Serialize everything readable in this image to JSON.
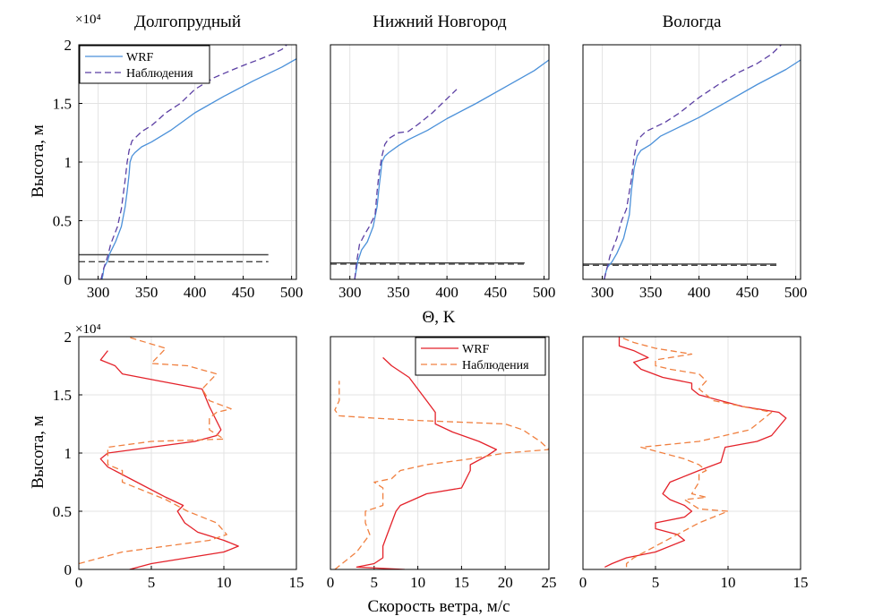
{
  "figure": {
    "top_ylabel": "Высота, м",
    "bottom_ylabel": "Высота, м",
    "top_xlabel": "Θ, K",
    "bottom_xlabel": "Скорость ветра, м/с",
    "y_multiplier": "×10⁴"
  },
  "colors": {
    "wrf_theta": "#4a90d9",
    "obs_theta": "#5b3fa3",
    "wrf_wind": "#e4222a",
    "obs_wind": "#f08040",
    "grid": "#e3e3e3",
    "hline_wrf": "#444444",
    "hline_obs": "#444444"
  },
  "chart_data": [
    {
      "type": "line",
      "panel": "top-left",
      "title": "Долгопрудный",
      "xlim": [
        280,
        505
      ],
      "ylim": [
        0,
        2
      ],
      "xticks": [
        "300",
        "350",
        "400",
        "450",
        "500"
      ],
      "yticks": [
        "0",
        "0.5",
        "1",
        "1.5",
        "2"
      ],
      "grid": true,
      "legend": {
        "placement": "top-left",
        "entries": [
          "WRF",
          "Наблюдения"
        ]
      },
      "series": [
        {
          "name": "WRF",
          "style": "solid",
          "x": [
            304,
            305,
            306,
            310,
            312,
            318,
            324,
            328,
            330,
            332,
            333,
            335,
            338,
            345,
            355,
            375,
            400,
            430,
            460,
            490,
            505
          ],
          "y": [
            0,
            0.04,
            0.1,
            0.16,
            0.22,
            0.32,
            0.45,
            0.62,
            0.75,
            0.9,
            1.0,
            1.05,
            1.08,
            1.13,
            1.17,
            1.27,
            1.42,
            1.56,
            1.69,
            1.81,
            1.88
          ]
        },
        {
          "name": "Наблюдения",
          "style": "dashed",
          "x": [
            303,
            306,
            310,
            313,
            320,
            324,
            328,
            330,
            332,
            335,
            340,
            345,
            355,
            362,
            370,
            385,
            400,
            420,
            440,
            455,
            465,
            480,
            490,
            495
          ],
          "y": [
            0,
            0.1,
            0.2,
            0.3,
            0.45,
            0.6,
            0.85,
            1.0,
            1.1,
            1.18,
            1.22,
            1.26,
            1.31,
            1.36,
            1.42,
            1.5,
            1.62,
            1.72,
            1.79,
            1.84,
            1.87,
            1.92,
            1.96,
            2.0
          ]
        }
      ],
      "hlines": [
        {
          "kind": "WRF",
          "style": "solid",
          "y": 0.21,
          "x0": 280,
          "x1": 476
        },
        {
          "kind": "Наблюдения",
          "style": "dashed",
          "y": 0.15,
          "x0": 280,
          "x1": 476
        }
      ]
    },
    {
      "type": "line",
      "panel": "top-middle",
      "title": "Нижний Новгород",
      "xlim": [
        280,
        505
      ],
      "ylim": [
        0,
        2
      ],
      "xticks": [
        "300",
        "350",
        "400",
        "450",
        "500"
      ],
      "yticks": [],
      "grid": true,
      "series": [
        {
          "name": "WRF",
          "style": "solid",
          "x": [
            305,
            306,
            308,
            312,
            318,
            324,
            328,
            330,
            332,
            333,
            336,
            340,
            350,
            360,
            380,
            400,
            430,
            460,
            490,
            505
          ],
          "y": [
            0,
            0.05,
            0.15,
            0.25,
            0.32,
            0.45,
            0.62,
            0.78,
            0.92,
            1.0,
            1.05,
            1.08,
            1.14,
            1.19,
            1.27,
            1.37,
            1.5,
            1.64,
            1.78,
            1.87
          ]
        },
        {
          "name": "Наблюдения",
          "style": "dashed",
          "x": [
            305,
            307,
            310,
            315,
            320,
            326,
            328,
            330,
            333,
            336,
            340,
            350,
            360,
            370,
            385,
            395,
            405,
            410
          ],
          "y": [
            0,
            0.15,
            0.3,
            0.38,
            0.45,
            0.55,
            0.75,
            0.9,
            1.05,
            1.15,
            1.2,
            1.25,
            1.26,
            1.32,
            1.42,
            1.5,
            1.58,
            1.62
          ]
        }
      ],
      "hlines": [
        {
          "kind": "WRF",
          "style": "solid",
          "y": 0.14,
          "x0": 280,
          "x1": 480
        },
        {
          "kind": "Наблюдения",
          "style": "dashed",
          "y": 0.13,
          "x0": 280,
          "x1": 480
        }
      ]
    },
    {
      "type": "line",
      "panel": "top-right",
      "title": "Вологда",
      "xlim": [
        280,
        505
      ],
      "ylim": [
        0,
        2
      ],
      "xticks": [
        "300",
        "350",
        "400",
        "450",
        "500"
      ],
      "yticks": [],
      "grid": true,
      "series": [
        {
          "name": "WRF",
          "style": "solid",
          "x": [
            302,
            303,
            305,
            310,
            315,
            322,
            328,
            330,
            333,
            336,
            340,
            350,
            360,
            380,
            400,
            430,
            460,
            490,
            505
          ],
          "y": [
            0,
            0.04,
            0.1,
            0.15,
            0.22,
            0.35,
            0.55,
            0.75,
            0.95,
            1.05,
            1.1,
            1.15,
            1.22,
            1.3,
            1.38,
            1.52,
            1.66,
            1.79,
            1.87
          ]
        },
        {
          "name": "Наблюдения",
          "style": "dashed",
          "x": [
            302,
            305,
            308,
            315,
            320,
            325,
            330,
            333,
            336,
            340,
            345,
            355,
            365,
            380,
            400,
            420,
            440,
            460,
            475,
            485
          ],
          "y": [
            0,
            0.1,
            0.2,
            0.35,
            0.5,
            0.6,
            0.85,
            1.05,
            1.18,
            1.22,
            1.26,
            1.3,
            1.34,
            1.42,
            1.55,
            1.66,
            1.76,
            1.84,
            1.92,
            2.0
          ]
        }
      ],
      "hlines": [
        {
          "kind": "WRF",
          "style": "solid",
          "y": 0.13,
          "x0": 280,
          "x1": 480
        },
        {
          "kind": "Наблюдения",
          "style": "dashed",
          "y": 0.12,
          "x0": 280,
          "x1": 480
        }
      ]
    },
    {
      "type": "line",
      "panel": "bottom-left",
      "title": "",
      "xlim": [
        0,
        15
      ],
      "ylim": [
        0,
        2
      ],
      "xticks": [
        "0",
        "5",
        "10",
        "15"
      ],
      "yticks": [
        "0",
        "0.5",
        "1",
        "1.5",
        "2"
      ],
      "grid": true,
      "series": [
        {
          "name": "WRF",
          "style": "solid",
          "x": [
            3.5,
            5,
            7.5,
            10,
            11,
            10,
            8.2,
            7.3,
            6.8,
            7.2,
            6,
            4,
            2,
            1.5,
            2,
            5,
            8,
            9.5,
            9.8,
            9,
            8.5,
            5.5,
            3,
            2.5,
            1.5,
            2
          ],
          "y": [
            0,
            0.05,
            0.1,
            0.15,
            0.2,
            0.25,
            0.32,
            0.4,
            0.5,
            0.55,
            0.62,
            0.75,
            0.88,
            0.95,
            1.0,
            1.05,
            1.1,
            1.15,
            1.2,
            1.4,
            1.55,
            1.62,
            1.68,
            1.75,
            1.8,
            1.88
          ]
        },
        {
          "name": "Наблюдения",
          "style": "dashed",
          "x": [
            0,
            3,
            6,
            9,
            10.2,
            9.5,
            7.5,
            6,
            4,
            3,
            3,
            2,
            2,
            5,
            10,
            9,
            9,
            9.5,
            10.5,
            9,
            8.5,
            9.5,
            7.5,
            5,
            6,
            3.3
          ],
          "y": [
            0.05,
            0.15,
            0.2,
            0.25,
            0.3,
            0.4,
            0.5,
            0.6,
            0.7,
            0.75,
            0.85,
            0.9,
            1.05,
            1.1,
            1.12,
            1.2,
            1.3,
            1.35,
            1.38,
            1.45,
            1.55,
            1.68,
            1.75,
            1.77,
            1.9,
            2.0
          ]
        }
      ]
    },
    {
      "type": "line",
      "panel": "bottom-middle",
      "title": "",
      "xlim": [
        0,
        25
      ],
      "ylim": [
        0,
        2
      ],
      "xticks": [
        "0",
        "5",
        "10",
        "15",
        "20",
        "25"
      ],
      "yticks": [],
      "grid": true,
      "legend": {
        "placement": "top-right",
        "entries": [
          "WRF",
          "Наблюдения"
        ]
      },
      "series": [
        {
          "name": "WRF",
          "style": "solid",
          "x": [
            8.5,
            3,
            5,
            6,
            6,
            6.5,
            7,
            7.5,
            8,
            11,
            15,
            16,
            16,
            18,
            19,
            17,
            14,
            12,
            12,
            11,
            10,
            9,
            7,
            6
          ],
          "y": [
            0,
            0.02,
            0.05,
            0.1,
            0.2,
            0.3,
            0.4,
            0.5,
            0.55,
            0.65,
            0.7,
            0.85,
            0.9,
            0.98,
            1.03,
            1.1,
            1.18,
            1.25,
            1.35,
            1.45,
            1.55,
            1.65,
            1.75,
            1.82
          ]
        },
        {
          "name": "Наблюдения",
          "style": "dashed",
          "x": [
            0.5,
            3,
            4.5,
            4,
            4,
            6,
            6,
            5,
            7,
            8,
            11,
            16,
            20,
            25,
            24,
            22,
            20,
            10,
            5,
            1,
            0.5,
            1,
            1,
            1
          ],
          "y": [
            0,
            0.15,
            0.3,
            0.4,
            0.5,
            0.55,
            0.7,
            0.75,
            0.78,
            0.85,
            0.9,
            0.95,
            1.0,
            1.03,
            1.1,
            1.2,
            1.25,
            1.28,
            1.3,
            1.32,
            1.37,
            1.45,
            1.55,
            1.62
          ]
        }
      ]
    },
    {
      "type": "line",
      "panel": "bottom-right",
      "title": "",
      "xlim": [
        0,
        15
      ],
      "ylim": [
        0,
        2
      ],
      "xticks": [
        "0",
        "5",
        "10",
        "15"
      ],
      "yticks": [],
      "grid": true,
      "series": [
        {
          "name": "WRF",
          "style": "solid",
          "x": [
            1.5,
            2,
            3,
            5,
            7,
            6.5,
            5,
            5,
            7,
            7.5,
            7,
            6,
            5.5,
            6,
            8,
            9.5,
            9.8,
            12,
            13,
            14,
            13.5,
            11,
            8,
            7.5,
            7.5,
            5.5,
            4,
            3.5,
            4.5,
            3.5,
            2.5,
            2.5
          ],
          "y": [
            0.02,
            0.05,
            0.1,
            0.15,
            0.25,
            0.3,
            0.35,
            0.4,
            0.45,
            0.5,
            0.55,
            0.6,
            0.65,
            0.75,
            0.85,
            0.92,
            1.05,
            1.1,
            1.15,
            1.3,
            1.35,
            1.4,
            1.5,
            1.55,
            1.6,
            1.65,
            1.72,
            1.78,
            1.82,
            1.88,
            1.92,
            2.0
          ]
        },
        {
          "name": "Наблюдения",
          "style": "dashed",
          "x": [
            3,
            3,
            3.5,
            5,
            8,
            10,
            8,
            7,
            8.5,
            7.5,
            8,
            8,
            8.5,
            8,
            7,
            4,
            8,
            11.5,
            13,
            9,
            8,
            8.5,
            8,
            6,
            5,
            5,
            7.5,
            5,
            3.5,
            2.5
          ],
          "y": [
            0.02,
            0.05,
            0.1,
            0.2,
            0.4,
            0.5,
            0.52,
            0.6,
            0.62,
            0.65,
            0.75,
            0.82,
            0.85,
            0.9,
            0.95,
            1.05,
            1.1,
            1.2,
            1.35,
            1.45,
            1.55,
            1.62,
            1.68,
            1.72,
            1.75,
            1.8,
            1.85,
            1.9,
            1.95,
            2.0
          ]
        }
      ]
    }
  ]
}
